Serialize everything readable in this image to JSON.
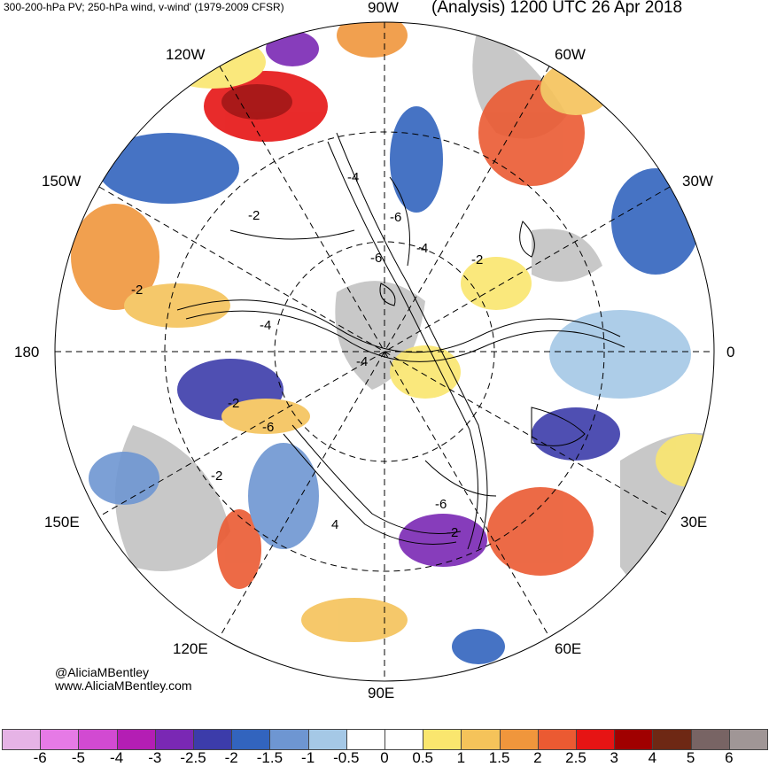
{
  "header": {
    "left_title": "300-200-hPa PV; 250-hPa wind, v-wind' (1979-2009 CFSR)",
    "right_title": "(Analysis) 1200 UTC 26 Apr 2018"
  },
  "longitude_labels": {
    "n": "90W",
    "nw": "120W",
    "ne": "60W",
    "wnw": "150W",
    "ene": "30W",
    "w": "180",
    "e": "0",
    "wsw": "150E",
    "ese": "30E",
    "sw": "120E",
    "se": "60E",
    "s": "90E"
  },
  "contour_labels": [
    "-4",
    "-6",
    "-2",
    "-4",
    "-6",
    "-4",
    "-2",
    "-2",
    "-4",
    "-2",
    "-6",
    "-2",
    "4",
    "-6",
    "-2"
  ],
  "credit": {
    "handle": "@AliciaMBentley",
    "site": "www.AliciaMBentley.com"
  },
  "colorbar": {
    "colors": [
      "#e6b3e6",
      "#e67ae6",
      "#d24ad2",
      "#b41eb4",
      "#7a28b4",
      "#3c3caa",
      "#3264be",
      "#6e96d2",
      "#a5c8e6",
      "#ffffff",
      "#ffffff",
      "#fae66e",
      "#f5c35a",
      "#f0963c",
      "#eb5a32",
      "#e61414",
      "#a00000",
      "#6e2814",
      "#786464",
      "#a09696"
    ],
    "ticks": [
      "-6",
      "-5",
      "-4",
      "-3",
      "-2.5",
      "-2",
      "-1.5",
      "-1",
      "-0.5",
      "0",
      "0.5",
      "1",
      "1.5",
      "2",
      "2.5",
      "3",
      "4",
      "5",
      "6"
    ]
  },
  "colors": {
    "land": "#c8c8c8",
    "contour": "#000000",
    "neg_anomaly": "#3264be",
    "pos_anomaly": "#eb5a32"
  }
}
